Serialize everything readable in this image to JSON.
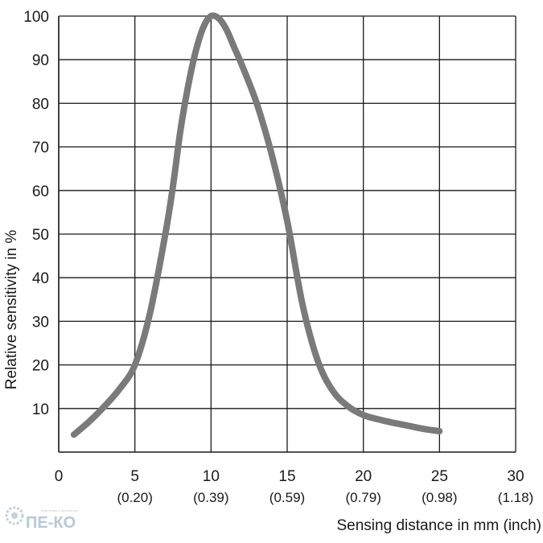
{
  "chart_data": {
    "type": "line",
    "xlabel": "Sensing distance in mm (inch)",
    "ylabel": "Relative sensitivity in %",
    "xlim": [
      0,
      30
    ],
    "ylim": [
      0,
      100
    ],
    "x_ticks": [
      {
        "mm": "0",
        "inch": ""
      },
      {
        "mm": "5",
        "inch": "(0.20)"
      },
      {
        "mm": "10",
        "inch": "(0.39)"
      },
      {
        "mm": "15",
        "inch": "(0.59)"
      },
      {
        "mm": "20",
        "inch": "(0.79)"
      },
      {
        "mm": "25",
        "inch": "(0.98)"
      },
      {
        "mm": "30",
        "inch": "(1.18)"
      }
    ],
    "y_ticks": [
      "10",
      "20",
      "30",
      "40",
      "50",
      "60",
      "70",
      "80",
      "90",
      "100"
    ],
    "grid": true,
    "series": [
      {
        "color": "#7a7a7a",
        "x": [
          1,
          2,
          3,
          4,
          5,
          6,
          7,
          7.5,
          8,
          8.5,
          9,
          9.5,
          10,
          10.5,
          11,
          11.5,
          12,
          13,
          14,
          15,
          16,
          17,
          18,
          19,
          20,
          21,
          22,
          23,
          24,
          25
        ],
        "y": [
          4,
          7,
          10.5,
          14.5,
          20,
          32,
          50,
          61,
          74,
          84,
          92,
          97.5,
          100,
          99.5,
          97,
          93,
          89,
          80,
          68,
          53,
          34,
          21,
          14,
          10.5,
          8.5,
          7.5,
          6.7,
          6,
          5.3,
          4.8
        ]
      }
    ]
  },
  "watermark": {
    "text": "ПЕ-КО",
    "tagline": "Энергетика и автоматика"
  }
}
